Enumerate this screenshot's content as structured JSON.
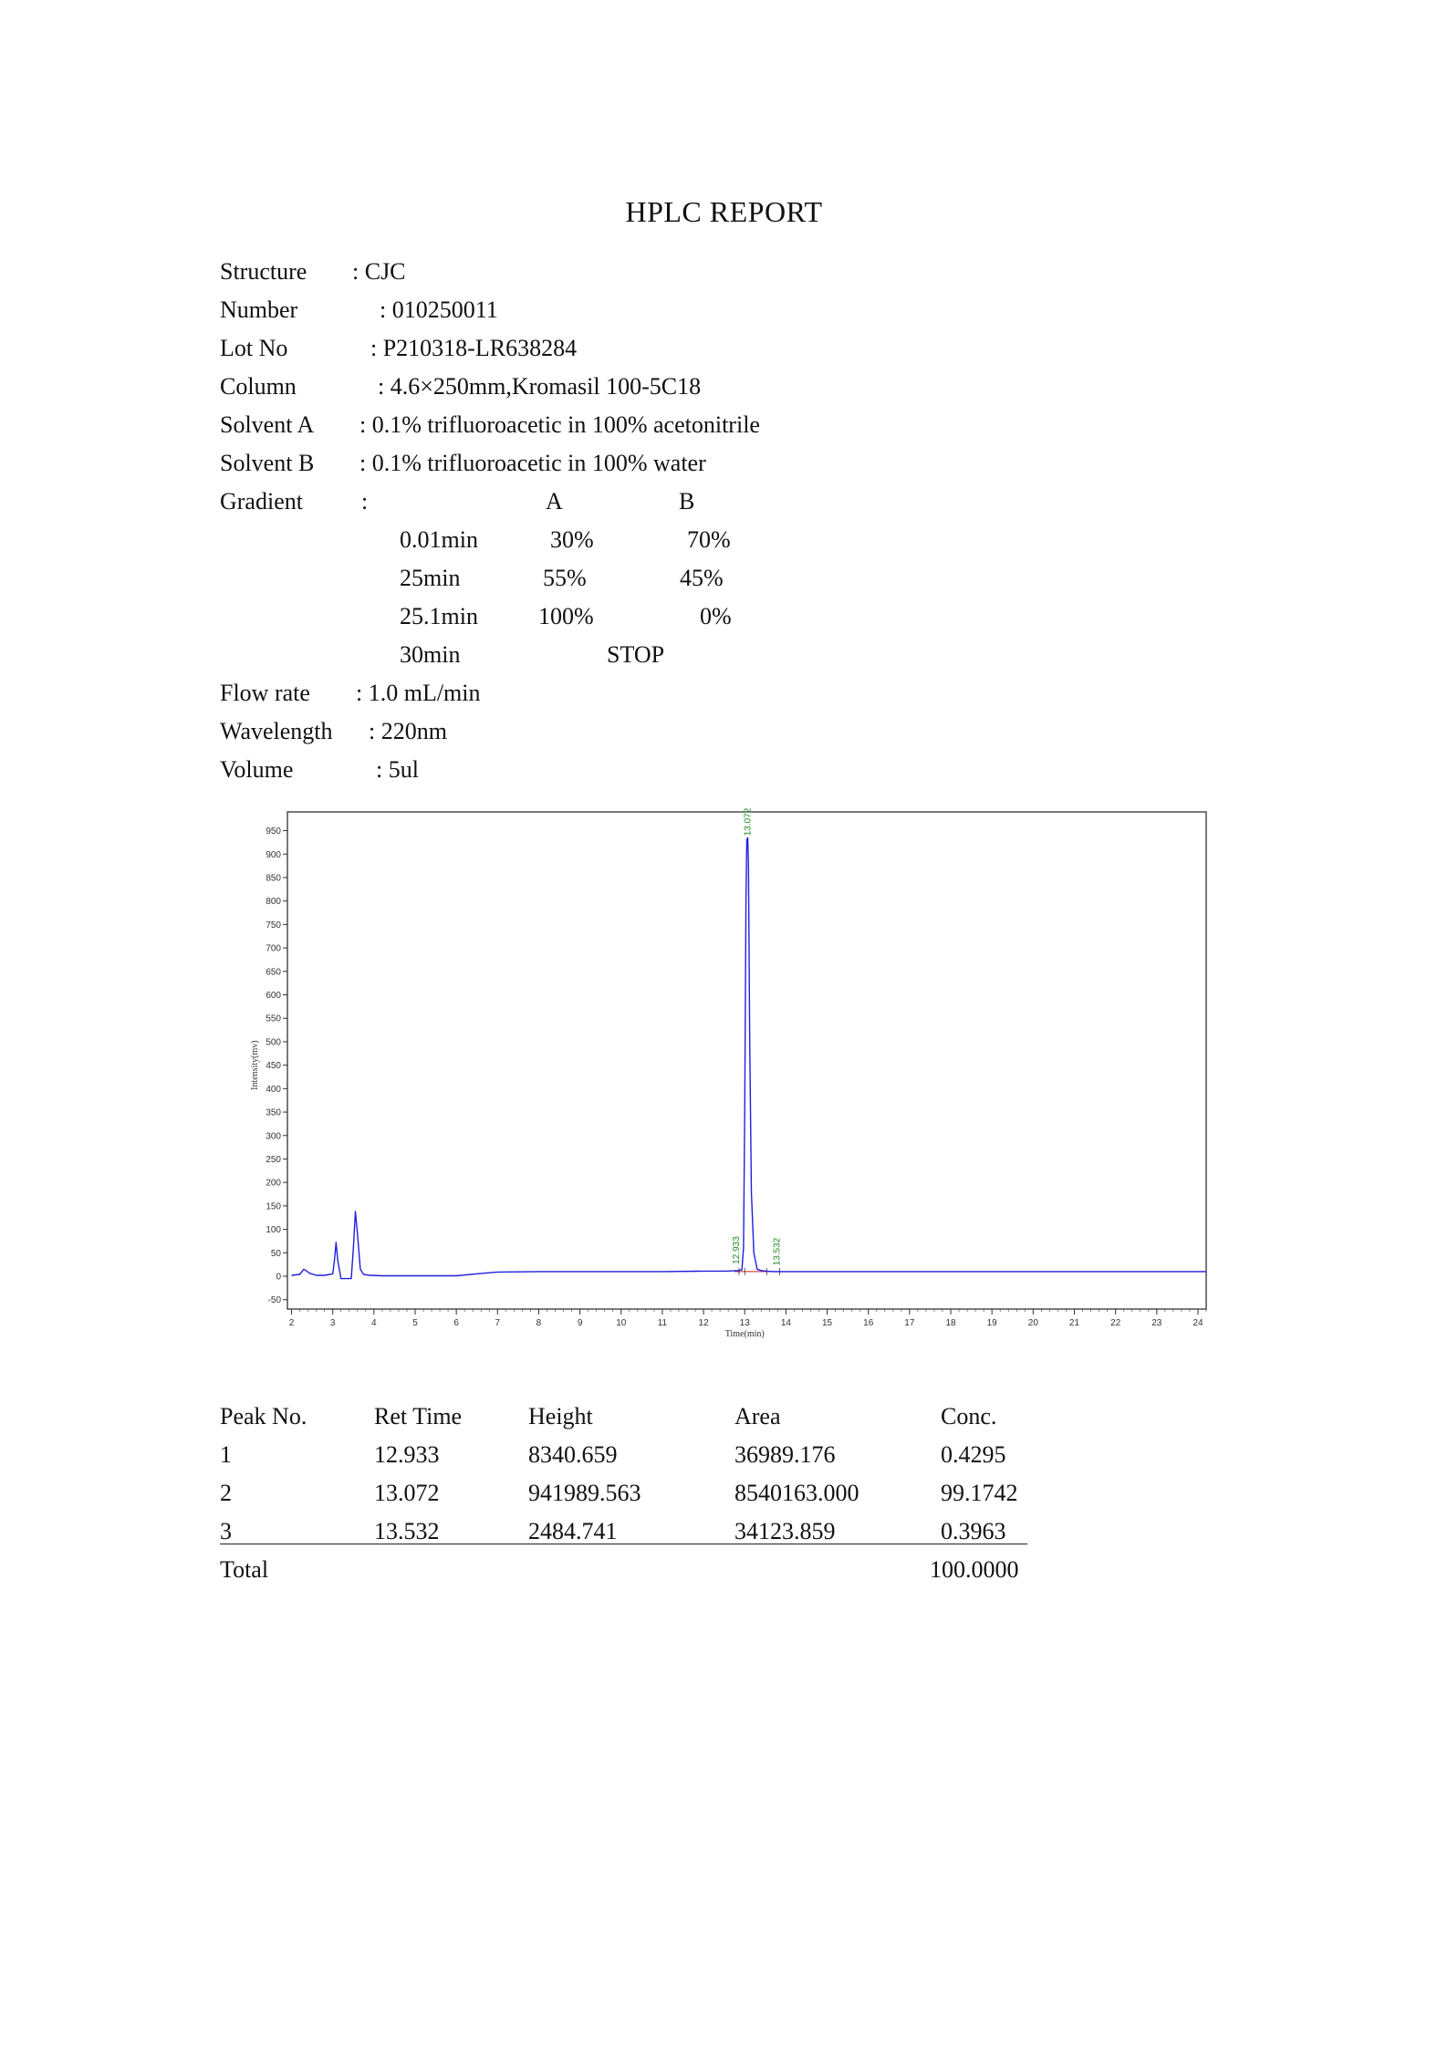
{
  "report": {
    "title": "HPLC REPORT",
    "fields": [
      {
        "label": "Structure",
        "value": ": CJC"
      },
      {
        "label": "Number",
        "value": ": 010250011"
      },
      {
        "label": "Lot No",
        "value": ": P210318-LR638284"
      },
      {
        "label": "Column",
        "value": ": 4.6×250mm,Kromasil 100-5C18"
      },
      {
        "label": "Solvent A",
        "value": ": 0.1% trifluoroacetic in 100% acetonitrile"
      },
      {
        "label": "Solvent B",
        "value": ": 0.1% trifluoroacetic in 100% water"
      },
      {
        "label": "Gradient",
        "value": ":"
      }
    ],
    "gradient": {
      "col_a": "A",
      "col_b": "B",
      "rows": [
        {
          "time": "0.01min",
          "a": "30%",
          "b": "70%"
        },
        {
          "time": "25min",
          "a": "55%",
          "b": "45%"
        },
        {
          "time": "25.1min",
          "a": "100%",
          "b": "0%"
        }
      ],
      "stop_time": "30min",
      "stop_label": "STOP"
    },
    "fields2": [
      {
        "label": "Flow rate",
        "value": ": 1.0 mL/min"
      },
      {
        "label": "Wavelength",
        "value": ": 220nm"
      },
      {
        "label": "Volume",
        "value": ": 5ul"
      }
    ]
  },
  "chart_data": {
    "type": "line",
    "xlabel": "Time(min)",
    "ylabel": "Intensity(mv)",
    "xlim": [
      1.9,
      24.2
    ],
    "ylim": [
      -70,
      990
    ],
    "xticks": [
      2,
      3,
      4,
      5,
      6,
      7,
      8,
      9,
      10,
      11,
      12,
      13,
      14,
      15,
      16,
      17,
      18,
      19,
      20,
      21,
      22,
      23,
      24
    ],
    "yticks": [
      -50,
      0,
      50,
      100,
      150,
      200,
      250,
      300,
      350,
      400,
      450,
      500,
      550,
      600,
      650,
      700,
      750,
      800,
      850,
      900,
      950
    ],
    "grid": false,
    "series": [
      {
        "color": "#2020e0",
        "x": [
          2.0,
          2.2,
          2.3,
          2.45,
          2.6,
          2.8,
          3.0,
          3.05,
          3.08,
          3.12,
          3.2,
          3.3,
          3.45,
          3.5,
          3.55,
          3.6,
          3.67,
          3.75,
          3.9,
          4.2,
          5.0,
          6.0,
          6.6,
          7.0,
          8.0,
          9.0,
          10.0,
          11.0,
          12.0,
          12.5,
          12.85,
          12.93,
          12.97,
          13.0,
          13.03,
          13.05,
          13.072,
          13.09,
          13.12,
          13.16,
          13.22,
          13.3,
          13.4,
          13.532,
          13.7,
          14.0,
          16.0,
          20.0,
          24.2
        ],
        "y": [
          2,
          4,
          15,
          6,
          2,
          2,
          5,
          40,
          72,
          35,
          -5,
          -5,
          -5,
          60,
          138,
          90,
          15,
          4,
          2,
          1,
          1,
          1,
          6,
          9,
          10,
          10,
          10,
          10,
          11,
          11,
          12,
          14,
          60,
          350,
          800,
          930,
          935,
          880,
          500,
          180,
          50,
          15,
          12,
          11,
          10,
          10,
          10,
          10,
          10
        ]
      }
    ],
    "peak_labels": [
      {
        "x": 13.072,
        "y": 935,
        "text": "13.072"
      },
      {
        "x": 12.933,
        "y": 14,
        "text": "12.933"
      },
      {
        "x": 13.532,
        "y": 11,
        "text": "13.532"
      }
    ],
    "integration": {
      "color": "#cc2020",
      "x_start": 12.75,
      "x_end": 13.85,
      "y": 10
    }
  },
  "results": {
    "headers": [
      "Peak No.",
      "Ret Time",
      "Height",
      "Area",
      "Conc."
    ],
    "rows": [
      [
        "1",
        "12.933",
        "8340.659",
        "36989.176",
        "0.4295"
      ],
      [
        "2",
        "13.072",
        "941989.563",
        "8540163.000",
        "99.1742"
      ],
      [
        "3",
        "13.532",
        "2484.741",
        "34123.859",
        "0.3963"
      ]
    ],
    "total_label": "Total",
    "total_value": "100.0000"
  }
}
